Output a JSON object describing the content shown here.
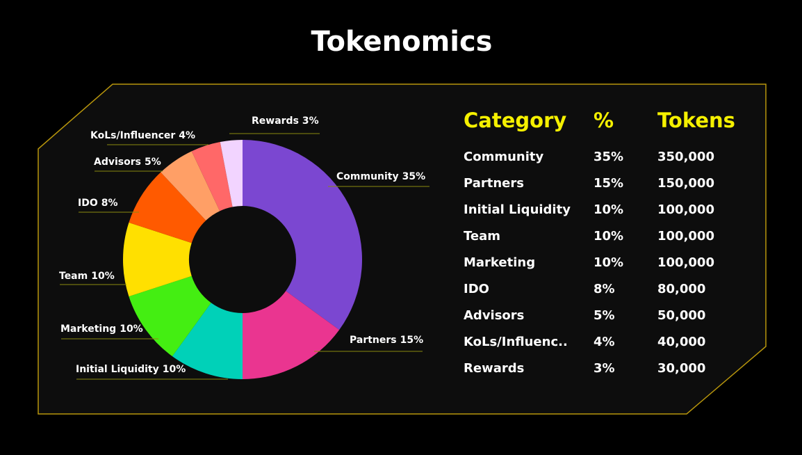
{
  "title": "Tokenomics",
  "chart_data": {
    "type": "pie",
    "donut": true,
    "categories": [
      "Community",
      "Partners",
      "Initial Liquidity",
      "Marketing",
      "Team",
      "IDO",
      "Advisors",
      "KoLs/Influencer",
      "Rewards"
    ],
    "values": [
      35,
      15,
      10,
      10,
      10,
      8,
      5,
      4,
      3
    ],
    "value_labels": [
      "35%",
      "15%",
      "10%",
      "10%",
      "10%",
      "8%",
      "5%",
      "4%",
      "3%"
    ],
    "colors": [
      "#7b47d1",
      "#ea3590",
      "#00d1b8",
      "#44ee12",
      "#ffe000",
      "#ff5a00",
      "#ff9f66",
      "#ff6868",
      "#f2d4ff"
    ]
  },
  "table": {
    "header": [
      "Category",
      "%",
      "Tokens"
    ],
    "rows": [
      [
        "Community",
        "35%",
        "350,000"
      ],
      [
        "Partners",
        "15%",
        "150,000"
      ],
      [
        "Initial Liquidity",
        "10%",
        "100,000"
      ],
      [
        "Team",
        "10%",
        "100,000"
      ],
      [
        "Marketing",
        "10%",
        "100,000"
      ],
      [
        "IDO",
        "8%",
        "80,000"
      ],
      [
        "Advisors",
        "5%",
        "50,000"
      ],
      [
        "KoLs/Influenc..",
        "4%",
        "40,000"
      ],
      [
        "Rewards",
        "3%",
        "30,000"
      ]
    ]
  }
}
